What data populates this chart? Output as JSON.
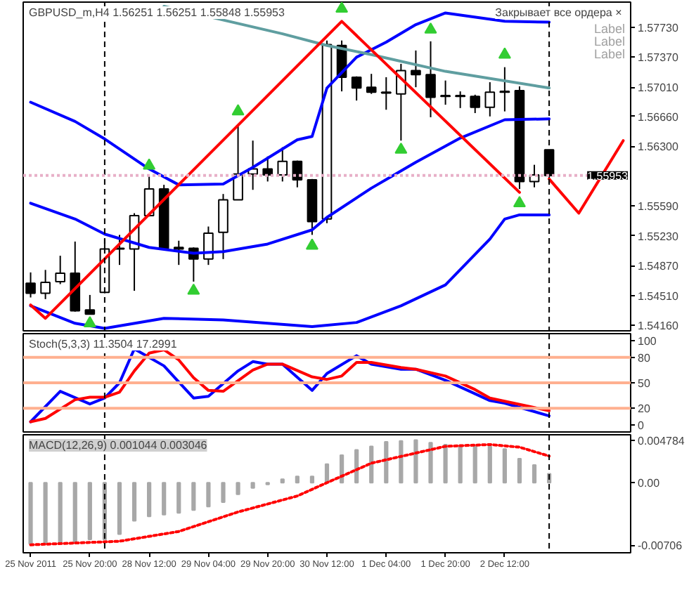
{
  "chart_data": [
    {
      "type": "candlestick",
      "title": "GBPUSD_m,H4  1.56251 1.56251 1.55848 1.55953",
      "tick_labels": "y",
      "ylim": [
        1.5409,
        1.5803
      ],
      "yticks": [
        {
          "value": 1.5773,
          "label": "1.57730"
        },
        {
          "value": 1.5737,
          "label": "1.57370"
        },
        {
          "value": 1.5701,
          "label": "1.57010"
        },
        {
          "value": 1.5666,
          "label": "1.56660"
        },
        {
          "value": 1.563,
          "label": "1.56300"
        },
        {
          "value": 1.5559,
          "label": "1.55590"
        },
        {
          "value": 1.5523,
          "label": "1.55230"
        },
        {
          "value": 1.5487,
          "label": "1.54870"
        },
        {
          "value": 1.5451,
          "label": "1.54510"
        },
        {
          "value": 1.5416,
          "label": "1.54160"
        }
      ],
      "categories": [
        null,
        null,
        null,
        null,
        null,
        null,
        null,
        null,
        null,
        null,
        null,
        null,
        null,
        null,
        null,
        null,
        null,
        null,
        null,
        null,
        null,
        null,
        null,
        null,
        null,
        null,
        null,
        null,
        null,
        null,
        null,
        null,
        null,
        null,
        null,
        null,
        null,
        null,
        null,
        null,
        null
      ],
      "ohlc": [
        [
          1.5466,
          1.5479,
          1.5449,
          1.5454
        ],
        [
          1.5454,
          1.5482,
          1.5447,
          1.5467
        ],
        [
          1.5468,
          1.5499,
          1.5465,
          1.5478
        ],
        [
          1.5478,
          1.5516,
          1.5432,
          1.5433
        ],
        [
          1.5434,
          1.5452,
          1.5429,
          1.5429
        ],
        [
          1.5455,
          1.5519,
          1.5454,
          1.5507
        ],
        [
          1.5507,
          1.5524,
          1.5488,
          1.5508
        ],
        [
          1.5507,
          1.555,
          1.5457,
          1.5547
        ],
        [
          1.5547,
          1.5594,
          1.5546,
          1.5579
        ],
        [
          1.5579,
          1.5584,
          1.5507,
          1.5508
        ],
        [
          1.5509,
          1.5517,
          1.5488,
          1.5507
        ],
        [
          1.5508,
          1.5509,
          1.5468,
          1.5495
        ],
        [
          1.5495,
          1.5534,
          1.5488,
          1.5526
        ],
        [
          1.5527,
          1.5573,
          1.5495,
          1.5566
        ],
        [
          1.5566,
          1.5654,
          1.5566,
          1.5597
        ],
        [
          1.5597,
          1.5637,
          1.5578,
          1.5603
        ],
        [
          1.5603,
          1.5618,
          1.5588,
          1.5596
        ],
        [
          1.5596,
          1.5629,
          1.5588,
          1.5612
        ],
        [
          1.5612,
          1.5613,
          1.5581,
          1.559
        ],
        [
          1.559,
          1.5591,
          1.5524,
          1.554
        ],
        [
          1.5543,
          1.5757,
          1.5538,
          1.5752
        ],
        [
          1.5751,
          1.5757,
          1.5696,
          1.5713
        ],
        [
          1.5713,
          1.5714,
          1.5685,
          1.57
        ],
        [
          1.5701,
          1.5717,
          1.5693,
          1.5695
        ],
        [
          1.5695,
          1.5713,
          1.5674,
          1.5694
        ],
        [
          1.5693,
          1.5729,
          1.5637,
          1.5721
        ],
        [
          1.5721,
          1.5745,
          1.5701,
          1.5716
        ],
        [
          1.5716,
          1.5756,
          1.5665,
          1.5689
        ],
        [
          1.5691,
          1.5709,
          1.568,
          1.569
        ],
        [
          1.5691,
          1.5696,
          1.5676,
          1.569
        ],
        [
          1.569,
          1.5692,
          1.567,
          1.5677
        ],
        [
          1.5677,
          1.5707,
          1.5666,
          1.5695
        ],
        [
          1.5696,
          1.5725,
          1.5672,
          1.5695
        ],
        [
          1.5697,
          1.5702,
          1.5579,
          1.5588
        ],
        [
          1.5588,
          1.5608,
          1.5581,
          1.5596
        ],
        [
          1.5626,
          1.5626,
          1.5586,
          1.5595
        ],
        null,
        null,
        null,
        null,
        null
      ],
      "series": [
        {
          "type": "line",
          "color": "#0000ff",
          "values": [
            1.5683,
            null,
            null,
            1.566,
            null,
            1.5639,
            null,
            null,
            1.5603,
            null,
            1.5584,
            null,
            null,
            1.5585,
            null,
            1.5605,
            null,
            null,
            1.5638,
            1.5642,
            1.57,
            null,
            1.5737,
            null,
            1.5755,
            null,
            1.5776,
            null,
            1.579,
            null,
            null,
            null,
            1.578,
            null,
            null,
            1.5779,
            null,
            null,
            null,
            null,
            null
          ]
        },
        {
          "type": "line",
          "color": "#0000ff",
          "values": [
            1.5562,
            null,
            null,
            1.5543,
            null,
            1.5525,
            null,
            null,
            1.5509,
            null,
            null,
            1.5502,
            null,
            1.5504,
            null,
            null,
            1.5513,
            null,
            null,
            1.553,
            1.5545,
            null,
            null,
            1.558,
            null,
            null,
            1.5611,
            null,
            null,
            1.564,
            null,
            null,
            1.5662,
            null,
            null,
            1.5663,
            null,
            null,
            null,
            null,
            null
          ]
        },
        {
          "type": "line",
          "color": "#0000ff",
          "values": [
            1.5439,
            null,
            null,
            1.5418,
            null,
            1.5412,
            null,
            null,
            null,
            1.5424,
            null,
            null,
            null,
            1.5422,
            null,
            null,
            null,
            null,
            null,
            1.5414,
            null,
            null,
            1.5419,
            null,
            null,
            1.5439,
            null,
            null,
            1.5464,
            null,
            null,
            1.5519,
            1.5543,
            1.5548,
            null,
            1.5548,
            null,
            null,
            null,
            null,
            null
          ]
        },
        {
          "type": "line",
          "color": "#5f9ea0",
          "values": [
            null,
            null,
            null,
            null,
            null,
            null,
            null,
            null,
            null,
            1.5798,
            null,
            null,
            null,
            null,
            null,
            null,
            null,
            1.5765,
            null,
            null,
            1.5751,
            null,
            null,
            1.574,
            null,
            null,
            null,
            null,
            1.572,
            null,
            null,
            null,
            null,
            null,
            null,
            1.57,
            null,
            null,
            null,
            null,
            null
          ]
        },
        {
          "type": "line",
          "color": "#ff0000",
          "values": [
            1.544,
            1.5424,
            null,
            null,
            null,
            null,
            null,
            null,
            null,
            null,
            null,
            null,
            null,
            null,
            null,
            null,
            null,
            null,
            null,
            null,
            null,
            1.578,
            null,
            null,
            null,
            null,
            null,
            null,
            null,
            null,
            null,
            null,
            null,
            1.5575,
            null,
            null,
            null,
            null,
            null,
            null,
            null
          ]
        },
        {
          "type": "line",
          "color": "#ff0000",
          "values": [
            null,
            null,
            null,
            null,
            null,
            null,
            null,
            null,
            null,
            null,
            null,
            null,
            null,
            null,
            null,
            null,
            null,
            null,
            null,
            null,
            null,
            null,
            null,
            null,
            null,
            null,
            null,
            null,
            null,
            null,
            null,
            null,
            null,
            null,
            null,
            1.5591,
            null,
            1.555,
            null,
            null,
            1.5637
          ]
        },
        {
          "type": "scatter",
          "marker": "triangle",
          "color": "#32cd32",
          "values": [
            null,
            null,
            null,
            null,
            null,
            null,
            null,
            null,
            1.5607,
            null,
            null,
            null,
            null,
            null,
            1.5672,
            null,
            null,
            null,
            null,
            null,
            null,
            1.5795,
            null,
            null,
            null,
            null,
            null,
            1.577,
            null,
            null,
            null,
            null,
            1.574,
            null,
            null,
            null,
            null,
            null,
            null,
            null,
            null
          ]
        },
        {
          "type": "scatter",
          "marker": "triangle",
          "color": "#32cd32",
          "values": [
            null,
            null,
            null,
            null,
            1.5418,
            null,
            null,
            null,
            null,
            null,
            null,
            1.5457,
            null,
            null,
            null,
            null,
            null,
            null,
            null,
            1.5511,
            null,
            null,
            null,
            null,
            null,
            1.5626,
            null,
            null,
            null,
            null,
            null,
            null,
            null,
            1.5562,
            null,
            null,
            null,
            null,
            null,
            null,
            null
          ]
        }
      ],
      "ref_lines": [
        {
          "axis": "y",
          "value": 1.55953,
          "label": "1.55953",
          "color": "#e8b0c8",
          "line_style": "dotted"
        }
      ],
      "annotations": [
        "Закрывает все ордера  ×",
        "Label",
        "Label",
        "Label"
      ]
    },
    {
      "type": "line",
      "title": "Stoch(5,3,3) 11.3504 17.2991",
      "tick_labels": "y",
      "ylim": [
        -8,
        108
      ],
      "yticks": [
        0,
        20,
        50,
        80,
        100
      ],
      "categories": [
        null,
        null,
        null,
        null,
        null,
        null,
        null,
        null,
        null,
        null,
        null,
        null,
        null,
        null,
        null,
        null,
        null,
        null,
        null,
        null,
        null,
        null,
        null,
        null,
        null,
        null,
        null,
        null,
        null,
        null,
        null,
        null,
        null,
        null,
        null,
        null,
        null,
        null,
        null,
        null,
        null
      ],
      "series": [
        {
          "color": "#0000ff",
          "values": [
            4,
            null,
            40,
            null,
            25,
            32,
            50,
            90,
            null,
            70,
            null,
            32,
            34,
            null,
            64,
            75,
            72,
            72,
            null,
            41,
            61,
            null,
            82,
            72,
            null,
            66,
            66,
            null,
            53,
            null,
            37,
            29,
            26,
            null,
            null,
            11,
            null,
            null,
            null,
            null,
            null
          ]
        },
        {
          "color": "#ff0000",
          "values": [
            4,
            8,
            null,
            30,
            33,
            33,
            39,
            64,
            85,
            89,
            77,
            56,
            41,
            40,
            null,
            65,
            72,
            72,
            null,
            57,
            54,
            58,
            74,
            74,
            null,
            68,
            66,
            null,
            58,
            null,
            42,
            32,
            null,
            null,
            null,
            17,
            null,
            null,
            null,
            null,
            null
          ]
        }
      ],
      "ref_lines": [
        {
          "axis": "y",
          "value": 80,
          "color": "#ffb090"
        },
        {
          "axis": "y",
          "value": 50,
          "color": "#ffb090"
        },
        {
          "axis": "y",
          "value": 20,
          "color": "#ffb090"
        }
      ]
    },
    {
      "type": "bar",
      "title": "MACD(12,26,9) 0.001044 0.003046",
      "ylim": [
        -0.0079,
        0.0054
      ],
      "yticks": [
        {
          "value": 0.004784,
          "label": "0.004784"
        },
        {
          "value": 0,
          "label": "0.00"
        },
        {
          "value": -0.00706,
          "label": "-0.00706"
        }
      ],
      "categories": [
        "25 Nov 2011",
        null,
        null,
        null,
        "25 Nov 20:00",
        null,
        null,
        null,
        "28 Nov 12:00",
        null,
        null,
        null,
        "29 Nov 04:00",
        null,
        null,
        null,
        "29 Nov 20:00",
        null,
        null,
        null,
        "30 Nov 12:00",
        null,
        null,
        null,
        "1 Dec 04:00",
        null,
        null,
        null,
        "1 Dec 20:00",
        null,
        null,
        null,
        "2 Dec 12:00",
        null,
        null,
        null,
        null,
        null,
        null,
        null,
        null
      ],
      "series": [
        {
          "type": "bar",
          "color": "#a8a8a8",
          "values": [
            -0.0069,
            -0.0069,
            -0.0069,
            -0.0068,
            -0.0064,
            -0.0064,
            -0.0058,
            -0.0043,
            -0.0038,
            -0.0036,
            -0.0034,
            -0.0031,
            -0.0027,
            -0.0022,
            -0.0013,
            -0.0006,
            -0.0002,
            0.0004,
            0.0007,
            0.0007,
            0.0021,
            0.0031,
            0.0037,
            0.0041,
            0.0046,
            0.0047,
            0.0048,
            0.0045,
            0.0043,
            0.0041,
            0.0041,
            0.0041,
            0.0038,
            0.0027,
            0.002,
            0.001,
            null,
            null,
            null,
            null,
            null
          ]
        },
        {
          "type": "line",
          "line_style": "dotted",
          "color": "#ff0000",
          "values": [
            -0.007,
            null,
            null,
            null,
            null,
            null,
            -0.0066,
            null,
            null,
            null,
            -0.0055,
            null,
            null,
            null,
            -0.0033,
            null,
            null,
            null,
            -0.0015,
            null,
            0,
            null,
            null,
            0.0022,
            null,
            null,
            null,
            null,
            0.0041,
            null,
            null,
            0.0043,
            null,
            0.004,
            null,
            0.003,
            null,
            null,
            null,
            null,
            null
          ]
        }
      ]
    }
  ]
}
